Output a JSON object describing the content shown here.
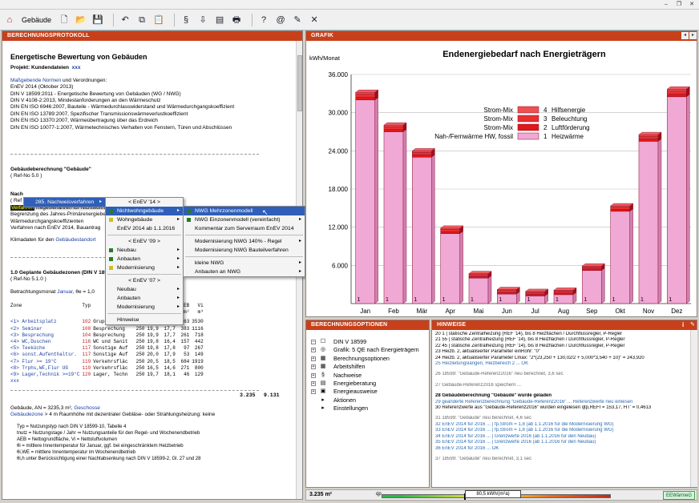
{
  "window": {
    "minimize": "–",
    "restore": "❐",
    "close": "✕"
  },
  "toolbar": {
    "app_label": "Gebäude",
    "icons": [
      "new-document-icon",
      "open-folder-icon",
      "save-icon",
      "undo-icon",
      "copy-icon",
      "paste-icon",
      "calculate-icon",
      "export-icon",
      "report-icon",
      "print-icon",
      "help-icon",
      "info-icon",
      "notes-icon",
      "close-icon"
    ],
    "glyphs": [
      "🗋",
      "📂",
      "💾",
      "↶",
      "⧉",
      "📋",
      "§",
      "⇩",
      "▤",
      "🖶",
      "?",
      "@",
      "✎",
      "✕"
    ]
  },
  "protocol": {
    "header": "BERECHNUNGSPROTOKOLL",
    "title": "Energetische Bewertung von Gebäuden",
    "project_label": "Projekt: Kundendateien",
    "project_value": "xxx",
    "norms_link": "Maßgebende Normen",
    "norms_rest": " und Verordnungen:",
    "norms": [
      "EnEV 2014 (Oktober 2013)",
      "DIN V 18599:2011 - Energetische Bewertung von Gebäuden (WG / NWG)",
      "DIN V 4108-2:2013, Mindestanforderungen an den Wärmeschutz",
      "DIN EN ISO 6946:2007, Bauteile - Wärmedurchlasswiderstand und Wärmedurchgangskoeffizient",
      "DIN EN ISO 13789:2007, Spezifischer Transmissionswärmeverlustkoeffizient",
      "DIN EN ISO 13370:2007, Wärmeübertragung über das Erdreich",
      "DIN EN ISO 10077-1:2007, Wärmetechnisches Verhalten von Fenstern, Türen und Abschlüssen"
    ],
    "building_calc": "Gebäudeberechnung \"Gebäude\"",
    "ref1": "( Ref-No 5.0 )",
    "nach_label": "Nach",
    "ref_partial": "( Ref",
    "verfahren_tag": "Verfahren",
    "regel_lines": [
      "Regelverfahren für Nichtwohngebäude",
      "Begrenzung des Jahres-Primärenergiebedarfs",
      "Wärmedurchgangskoeffizienten",
      "Verfahren nach EnEV 2014, Bauantrag"
    ],
    "klima_prefix": "Klimadaten für den ",
    "klima_link": "Gebäudestandort",
    "zones_title": "1.0 Geplante Gebäudezonen (DIN V 18599-1)",
    "ref2": "( Ref-No 5.1.0 )",
    "month_prefix": "Betrachtungsmonat ",
    "month_link": "Januar",
    "month_suffix": ", θe = 1,0",
    "table_head": [
      "Zone",
      "Typ",
      "",
      "tnutz",
      "θi",
      "θi,WE",
      "AEB",
      "Vi"
    ],
    "table_units": [
      "",
      "",
      "",
      "d/a",
      "°C",
      "°C",
      "m²",
      "m³"
    ],
    "zones": [
      [
        "<1> Arbeitsplatz",
        "102",
        "Gruppenbüro",
        "250",
        "20,0",
        "17,6",
        "1263",
        "3530"
      ],
      [
        "<2> Seminar",
        "108",
        "Besprechung",
        "250",
        "19,9",
        "17,7",
        "383",
        "1116"
      ],
      [
        "<3> Besprechung",
        "104",
        "Besprechung",
        "250",
        "19,9",
        "17,7",
        "261",
        "718"
      ],
      [
        "<4> WC,Duschen",
        "116",
        "WC und Sanit",
        "250",
        "19,8",
        "16,4",
        "157",
        "442"
      ],
      [
        "<5> Teeküche",
        "117",
        "Sonstige Auf",
        "250",
        "19,8",
        "17,8",
        "97",
        "267"
      ],
      [
        "<6> sonst.Aufenthaltsr.",
        "117",
        "Sonstige Auf",
        "250",
        "20,0",
        "17,9",
        "53",
        "149"
      ],
      [
        "<7> Flur >= 19°C",
        "119",
        "Verkehrsfläc",
        "250",
        "20,5",
        "18,5",
        "684",
        "1919"
      ],
      [
        "<8> Trphs,WF,Flur UG",
        "119",
        "Verkehrsfläc",
        "250",
        "16,5",
        "14,6",
        "271",
        "800"
      ],
      [
        "<9> Lager,Technik >=19°C",
        "120",
        "Lager, Techn",
        "250",
        "19,7",
        "18,1",
        "46",
        "129"
      ]
    ],
    "zones_tail": "xxx",
    "sum_aeb": "3.235",
    "sum_vi": "9.131",
    "area_text": "Gebäude, AN = 3235,3 m², ",
    "area_link": "Geschosse",
    "gz_link": "Gebäudezone",
    "gz_text": " > 4 m Raumhöhe mit dezentraler Gebläse- oder Strahlungsheizung: keine",
    "legend": [
      "Typ = Nutzungstyp nach DIN V 18599-10, Tabelle 4",
      "tnutz = Nutzungstage / Jahr   ⇒   Nutzungsanteile für den Regel- und Wochenendbetrieb",
      "AEB = Nettogrundfläche, Vi = Nettoluftvolumen",
      "θi = mittlere Innentemperatur für Januar, ggf. bei eingeschränktem Heizbetrieb",
      "θi,WE = mittlere Innentemperatur im Wochenendbetrieb",
      "θi,h unter Berücksichtigung einer Nachtabsenkung nach DIN V 18599-2, Gl. 27 und 28"
    ]
  },
  "menus": {
    "m1": {
      "item": "285. Nachweisverfahren",
      "tag": "Verfahren"
    },
    "m2": [
      {
        "t": "hd",
        "label": "< EnEV '14 >"
      },
      {
        "t": "item",
        "label": "Nichtwohngebäude",
        "sel": true,
        "arrow": true,
        "bullet": "#2a7a2a"
      },
      {
        "t": "item",
        "label": "Wohngebäude",
        "arrow": true,
        "bullet": "#d0c020"
      },
      {
        "t": "item",
        "label": "EnEV 2014 ab 1.1.2016"
      },
      {
        "t": "sep"
      },
      {
        "t": "hd",
        "label": "< EnEV '09 >"
      },
      {
        "t": "item",
        "label": "Neubau",
        "arrow": true,
        "bullet": "#2a7a2a"
      },
      {
        "t": "item",
        "label": "Anbauten",
        "arrow": true,
        "bullet": "#2a7a2a"
      },
      {
        "t": "item",
        "label": "Modernisierung",
        "arrow": true,
        "bullet": "#d0c020"
      },
      {
        "t": "sep"
      },
      {
        "t": "hd",
        "label": "< EnEV '07 >"
      },
      {
        "t": "item",
        "label": "Neubau",
        "arrow": true
      },
      {
        "t": "item",
        "label": "Anbauten",
        "arrow": true
      },
      {
        "t": "item",
        "label": "Modernisierung",
        "arrow": true
      },
      {
        "t": "sep"
      },
      {
        "t": "item",
        "label": "Hinweise"
      }
    ],
    "m3": [
      {
        "t": "item",
        "label": "NWG Mehrzonenmodell",
        "sel": true,
        "bullet": "#2a7a2a"
      },
      {
        "t": "item",
        "label": "NWG Einzonenmodell (vereinfacht)",
        "arrow": true,
        "bullet": "#2a7a2a"
      },
      {
        "t": "item",
        "label": "Kommentar zum Serverraum EnEV 2014"
      },
      {
        "t": "sep"
      },
      {
        "t": "item",
        "label": "Modernisierung NWG 140% - Regel",
        "arrow": true
      },
      {
        "t": "item",
        "label": "Modernisierung NWG Bauteilverfahren"
      },
      {
        "t": "sep"
      },
      {
        "t": "item",
        "label": "kleine NWG",
        "arrow": true
      },
      {
        "t": "item",
        "label": "Anbauten an NWG",
        "arrow": true
      }
    ]
  },
  "graph": {
    "header": "GRAFIK",
    "nav_prev": "◂",
    "nav_next": "▸"
  },
  "chart_data": {
    "type": "bar",
    "title": "Endenergiebedarf nach Energieträgern",
    "ylabel": "kWh/Monat",
    "ylim": [
      0,
      36000
    ],
    "yticks": [
      "6.000",
      "12.000",
      "18.000",
      "24.000",
      "30.000",
      "36.000"
    ],
    "ytick_values": [
      6000,
      12000,
      18000,
      24000,
      30000,
      36000
    ],
    "categories": [
      "Jan",
      "Feb",
      "Mär",
      "Apr",
      "Mai",
      "Jun",
      "Jul",
      "Aug",
      "Sep",
      "Okt",
      "Nov",
      "Dez"
    ],
    "series": [
      {
        "name": "Nah-/Fernwärme HW, fossil",
        "number": "1",
        "label": "Heizwärme",
        "color": "#f0a8d4",
        "values": [
          32000,
          27000,
          23000,
          11000,
          4000,
          1500,
          1200,
          1400,
          5200,
          14500,
          25500,
          32500
        ]
      },
      {
        "name": "Strom-Mix",
        "number": "2",
        "label": "Luftförderung",
        "color": "#e01818",
        "values": [
          400,
          350,
          350,
          300,
          250,
          250,
          250,
          250,
          250,
          300,
          350,
          400
        ]
      },
      {
        "name": "Strom-Mix",
        "number": "3",
        "label": "Beleuchtung",
        "color": "#e83030",
        "values": [
          500,
          450,
          400,
          350,
          300,
          300,
          300,
          300,
          300,
          350,
          450,
          500
        ]
      },
      {
        "name": "Strom-Mix",
        "number": "4",
        "label": "Hilfsenergie",
        "color": "#f05050",
        "values": [
          300,
          250,
          250,
          200,
          150,
          150,
          150,
          150,
          150,
          200,
          250,
          300
        ]
      }
    ],
    "bar_label": "1"
  },
  "options": {
    "header": "BERECHNUNGSOPTIONEN",
    "items": [
      {
        "label": "DIN V 18599",
        "icon": "☐",
        "exp": "–",
        "indent": 0,
        "name": "tree-din-v-18599"
      },
      {
        "label": "Grafik: 5 QE nach Energieträgern",
        "icon": "◎",
        "exp": "+",
        "indent": 0,
        "name": "tree-grafik"
      },
      {
        "label": "Berechnungsoptionen",
        "icon": "▦",
        "exp": "+",
        "indent": 0,
        "name": "tree-berechnungsoptionen"
      },
      {
        "label": "Arbeitshilfen",
        "icon": "▦",
        "exp": "+",
        "indent": 0,
        "name": "tree-arbeitshilfen"
      },
      {
        "label": "Nachweise",
        "icon": "§",
        "exp": "+",
        "indent": 0,
        "name": "tree-nachweise"
      },
      {
        "label": "Energieberatung",
        "icon": "▤",
        "exp": "+",
        "indent": 0,
        "name": "tree-energieberatung"
      },
      {
        "label": "Energieausweise",
        "icon": "▣",
        "exp": "+",
        "indent": 0,
        "name": "tree-energieausweise"
      },
      {
        "label": "Aktionen",
        "icon": "▸",
        "exp": "",
        "indent": 0,
        "name": "tree-aktionen"
      },
      {
        "label": "Einstellungen",
        "icon": "▸",
        "exp": "",
        "indent": 0,
        "name": "tree-einstellungen"
      }
    ]
  },
  "hints": {
    "header": "HINWEISE",
    "lines": [
      {
        "c": "",
        "t": "20   1 | statische Zentralheizung (REF '14), bis 8 Heizflächen / Durchflussregler, P-Regler"
      },
      {
        "c": "",
        "t": "21   55 | statische Zentralheizung (REF '14), bis 8 Heizflächen / Durchflussregler, P-Regler"
      },
      {
        "c": "",
        "t": "22   45 | statische Zentralheizung (REF '14), bis 8 Heizflächen / Durchflussregler, P-Regler"
      },
      {
        "c": "",
        "t": "23   Heizb. 2, aktualisierter Parameter einRohr: \"0\""
      },
      {
        "c": "",
        "t": "24   Heizb. 2, aktualisierter Parameter Lmax: \"2*(23,250 + 130,02/2 + 5,000*3,540 + 10)\" = 243,920"
      },
      {
        "c": "b",
        "t": "25   Heizleitungslängen, Heizbereich 2 ... OK"
      },
      {
        "c": "sp",
        "t": ""
      },
      {
        "c": "g",
        "t": "26   18599: \"Gebäude-Referenz2016\" neu berechnet, 3,6 sec"
      },
      {
        "c": "sp",
        "t": ""
      },
      {
        "c": "g",
        "t": "27   Gebäude-Referenz2016 speichern ..."
      },
      {
        "c": "sp",
        "t": ""
      },
      {
        "c": "bo",
        "t": "28   Gebäudeberechnung \"Gebäude\" wurde geladen"
      },
      {
        "c": "b",
        "t": "29   geänderte Referenzberechnung \"Gebäude-Referenz2016\" ... Referenzwerte neu einlesen"
      },
      {
        "c": "",
        "t": "30   Referenzwerte aus \"Gebäude-Referenz2016\" wurden eingelesen qtp,REFI = 153,17, HT' = 0,4613"
      },
      {
        "c": "sp",
        "t": ""
      },
      {
        "c": "g",
        "t": "31   18599: \"Gebäude\" neu berechnet, 4,6 sec"
      },
      {
        "c": "b",
        "t": "32   EnEV 2014 für 2016 ... | fp,Strom = 1,8 (ab 1.1.2016 für die Modernisierung WG)"
      },
      {
        "c": "b",
        "t": "33   EnEV 2014 für 2016 ... | fp,Strom = 1,8 (ab 1.1.2016 für die Modernisierung WG)"
      },
      {
        "c": "b",
        "t": "34   EnEV 2014 für 2016 ... | Grenzwerte 2016 (ab 1.1.2016 für den Neubau)"
      },
      {
        "c": "b",
        "t": "35   EnEV 2014 für 2016 ... | Grenzwerte 2016 (ab 1.1.2016 für den Neubau)"
      },
      {
        "c": "b",
        "t": "36   EnEV 2014 für 2016 ... OK"
      },
      {
        "c": "sp",
        "t": ""
      },
      {
        "c": "g",
        "t": "37   18599: \"Gebäude\" neu berechnet, 3,1 sec"
      }
    ]
  },
  "status": {
    "area": "3.235 m²",
    "qp_label": "qp",
    "qp_value": "80,5 kWh/(m²a)",
    "qp_fraction": 0.36,
    "badge": "EEWärmeG"
  }
}
